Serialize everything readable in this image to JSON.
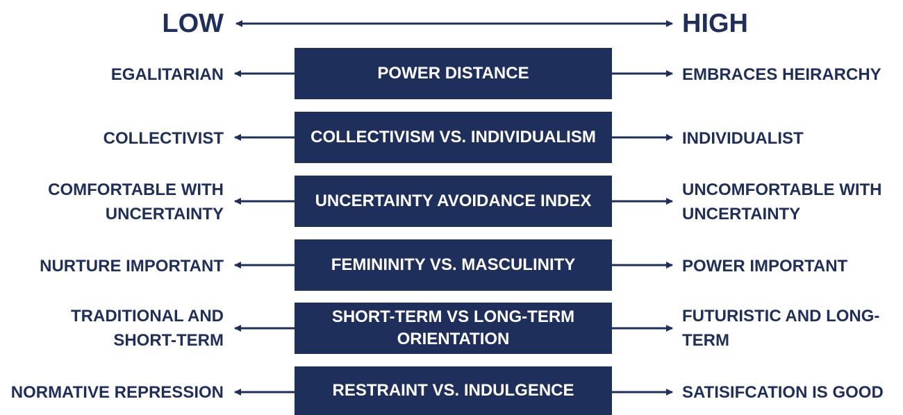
{
  "header": {
    "low": "LOW",
    "high": "HIGH"
  },
  "dimensions": [
    {
      "center": "POWER DISTANCE",
      "low": "EGALITARIAN",
      "high": "EMBRACES HEIRARCHY"
    },
    {
      "center": "COLLECTIVISM VS. INDIVIDUALISM",
      "low": "COLLECTIVIST",
      "high": "INDIVIDUALIST"
    },
    {
      "center": "UNCERTAINTY AVOIDANCE INDEX",
      "low": "COMFORTABLE WITH\nUNCERTAINTY",
      "high": "UNCOMFORTABLE WITH\nUNCERTAINTY"
    },
    {
      "center": "FEMININITY VS. MASCULINITY",
      "low": "NURTURE IMPORTANT",
      "high": "POWER IMPORTANT"
    },
    {
      "center": "SHORT-TERM VS LONG-TERM\nORIENTATION",
      "low": "TRADITIONAL AND\nSHORT-TERM",
      "high": "FUTURISTIC AND LONG-\nTERM"
    },
    {
      "center": "RESTRAINT VS. INDULGENCE",
      "low": "NORMATIVE REPRESSION",
      "high": "SATISIFCATION IS GOOD"
    }
  ],
  "colors": {
    "navy": "#1f2f5c",
    "white": "#ffffff"
  }
}
